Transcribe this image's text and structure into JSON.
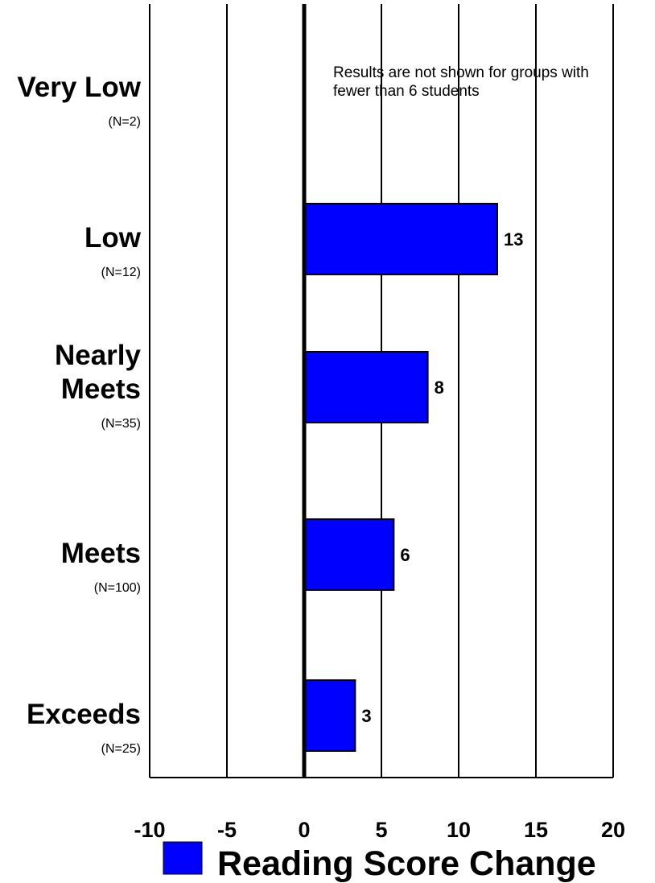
{
  "chart_data": {
    "type": "bar",
    "orientation": "horizontal",
    "categories": [
      {
        "lines": [
          "Very Low"
        ],
        "n": "(N=2)"
      },
      {
        "lines": [
          "Low"
        ],
        "n": "(N=12)"
      },
      {
        "lines": [
          "Nearly",
          "Meets"
        ],
        "n": "(N=35)"
      },
      {
        "lines": [
          "Meets"
        ],
        "n": "(N=100)"
      },
      {
        "lines": [
          "Exceeds"
        ],
        "n": "(N=25)"
      }
    ],
    "series": [
      {
        "name": "Reading Score Change",
        "color": "#0000ff",
        "values": [
          null,
          12.5,
          8,
          5.8,
          3.3
        ],
        "labels": [
          "",
          "13",
          "8",
          "6",
          "3"
        ]
      }
    ],
    "xlim": [
      -10,
      20
    ],
    "xticks": [
      "-10",
      "-5",
      "0",
      "5",
      "10",
      "15",
      "20"
    ],
    "grid": "vertical",
    "legend": "bottom",
    "annotation": [
      "Results are not shown for groups with",
      "fewer than 6 students"
    ]
  }
}
